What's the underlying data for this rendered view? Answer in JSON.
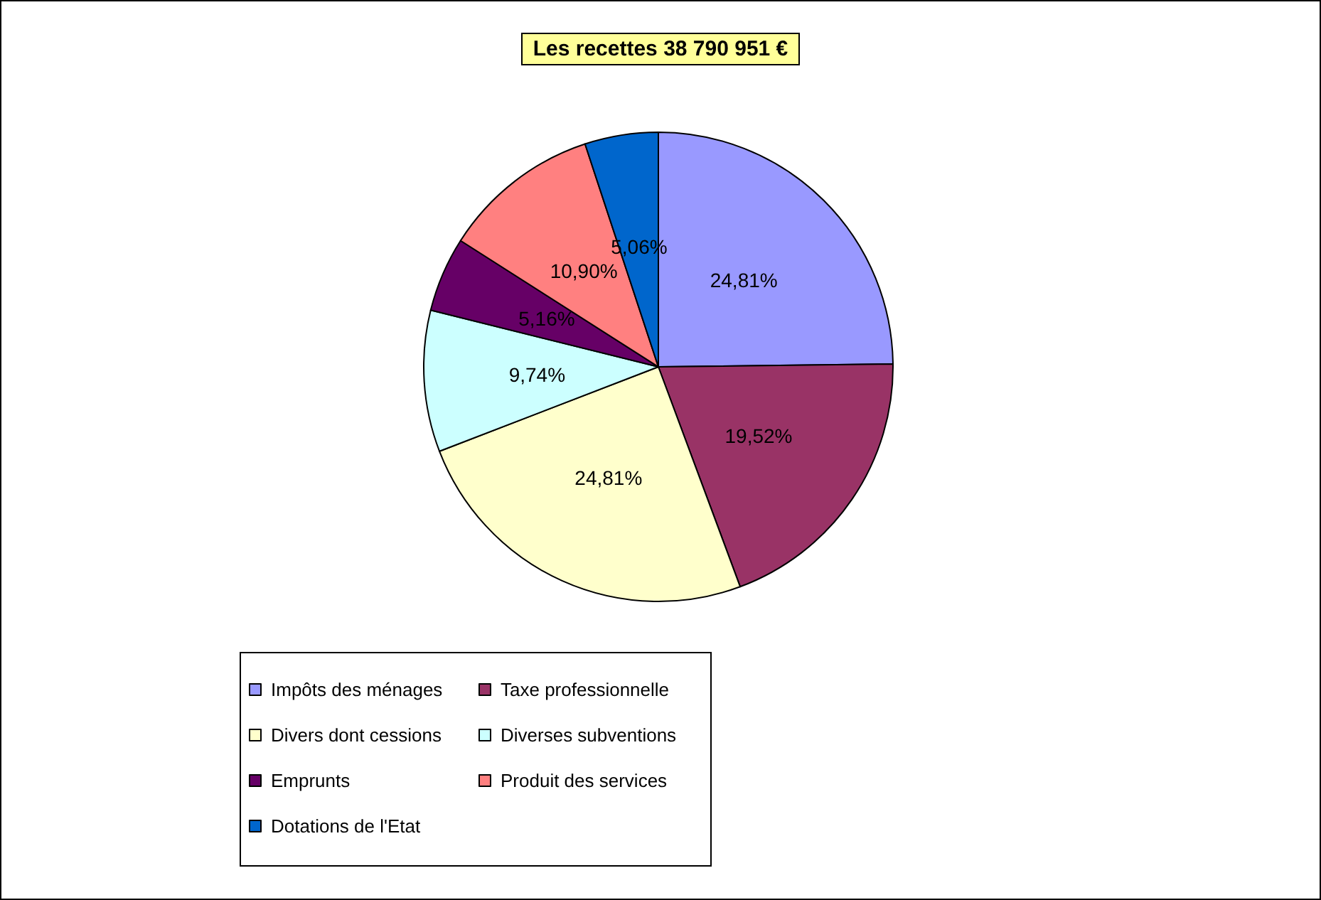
{
  "chart_data": {
    "type": "pie",
    "title": "Les recettes 38 790 951 €",
    "categories": [
      "Impôts des ménages",
      "Taxe professionnelle",
      "Divers dont cessions",
      "Diverses subventions",
      "Emprunts",
      "Produit des services",
      "Dotations de l'Etat"
    ],
    "values": [
      24.81,
      19.52,
      24.81,
      9.74,
      5.16,
      10.9,
      5.06
    ],
    "value_labels": [
      "24,81%",
      "19,52%",
      "24,81%",
      "9,74%",
      "5,16%",
      "10,90%",
      "5,06%"
    ],
    "colors": [
      "#9999ff",
      "#993366",
      "#ffffcc",
      "#ccffff",
      "#660066",
      "#ff8080",
      "#0066cc"
    ],
    "legend": "bottom"
  }
}
